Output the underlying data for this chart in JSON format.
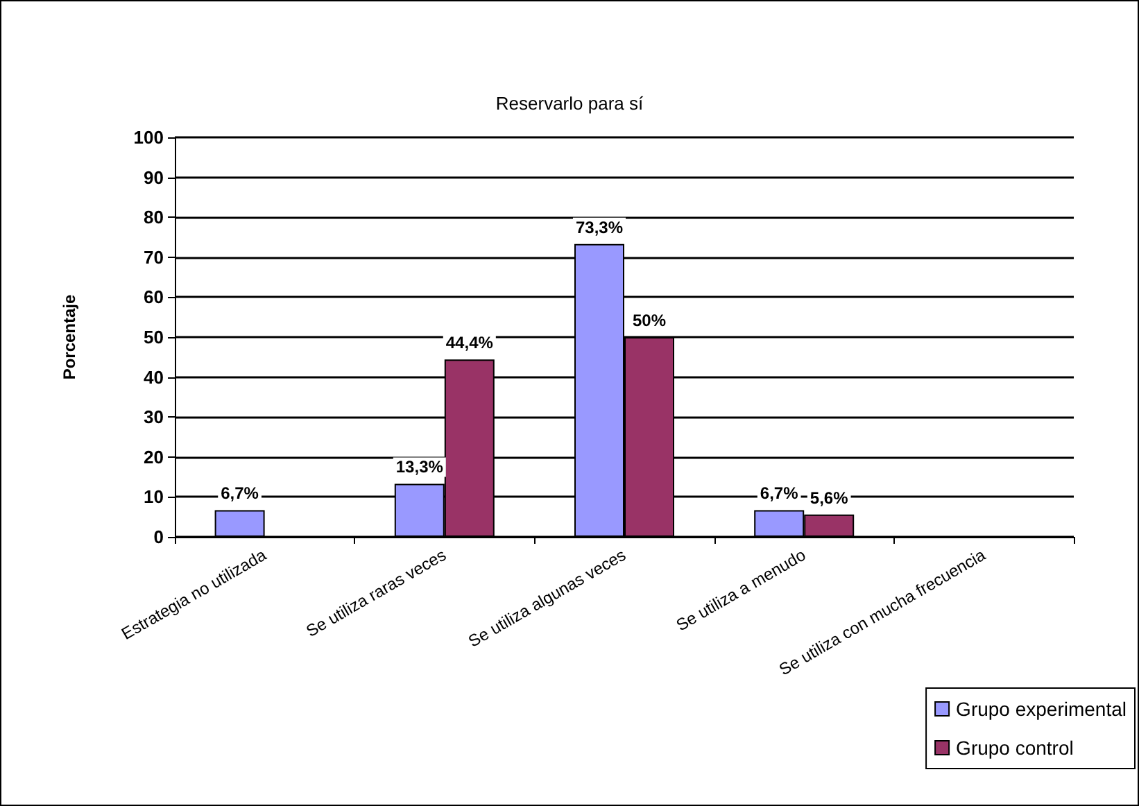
{
  "chart_data": {
    "type": "bar",
    "title": "Reservarlo para sí",
    "ylabel": "Porcentaje",
    "categories": [
      "Estrategia no utilizada",
      "Se utiliza raras veces",
      "Se utiliza algunas veces",
      "Se utiliza a menudo",
      "Se utiliza con mucha frecuencia"
    ],
    "series": [
      {
        "name": "Grupo experimental",
        "color": "#9999ff",
        "values": [
          6.7,
          13.3,
          73.3,
          6.7,
          null
        ],
        "value_labels": [
          "6,7%",
          "13,3%",
          "73,3%",
          "6,7%",
          null
        ]
      },
      {
        "name": "Grupo control",
        "color": "#993366",
        "values": [
          null,
          44.4,
          50,
          5.6,
          null
        ],
        "value_labels": [
          null,
          "44,4%",
          "50%",
          "5,6%",
          null
        ]
      }
    ],
    "ylim": [
      0,
      100
    ],
    "yticks": [
      0,
      10,
      20,
      30,
      40,
      50,
      60,
      70,
      80,
      90,
      100
    ],
    "grid": "y",
    "legend": "bottom right"
  }
}
